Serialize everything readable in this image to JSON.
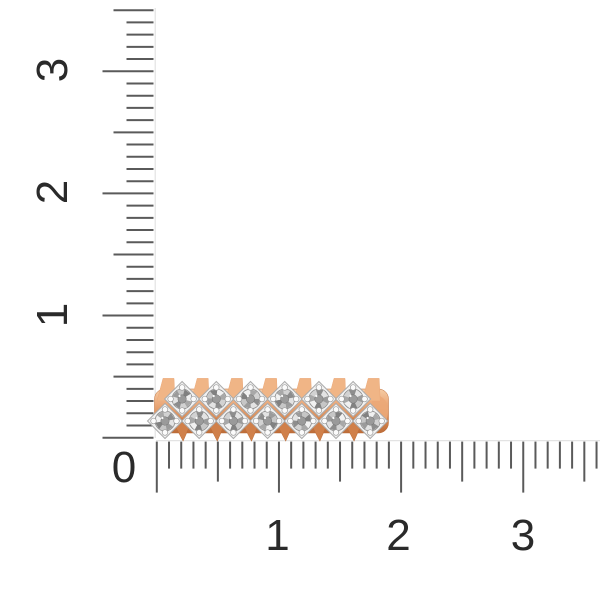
{
  "image_type": "jewelry product photo with measurement rulers",
  "colors": {
    "background": "#ffffff",
    "tick": "#5a5a5a",
    "ruler_edge": "#e3e3e3",
    "label": "#2a2a2a",
    "gold_highlight": "#F6CCA4",
    "gold_mid": "#EBA878",
    "gold_peak": "#F0B586",
    "gold_deep": "#D0804A",
    "gold_shadow": "#BC6C38",
    "setting_metal": "#f2f2f2",
    "setting_edge": "#ababab",
    "diamond_base": "#d8d8d8",
    "diamond_rim": "#8c8c8c",
    "diamond_center": "#9a9a9a",
    "prong_bead": "#fbfbfb",
    "prong_bead_edge": "#9c9c9c"
  },
  "rulers": {
    "vertical_labels": [
      "3",
      "2",
      "1"
    ],
    "origin_label": "0",
    "horizontal_labels": [
      "1",
      "2",
      "3"
    ]
  },
  "ring": {
    "description": "Rose gold band, side view, two staggered rows of prong-set round diamonds",
    "top_row_stones": 6,
    "bottom_row_stones": 7,
    "diamond_facets": [
      "#f1f1f1",
      "#a8a8a8",
      "#d2d2d2",
      "#8d8d8d",
      "#e3e3e3",
      "#9b9b9b",
      "#c6c6c6",
      "#818181"
    ]
  }
}
